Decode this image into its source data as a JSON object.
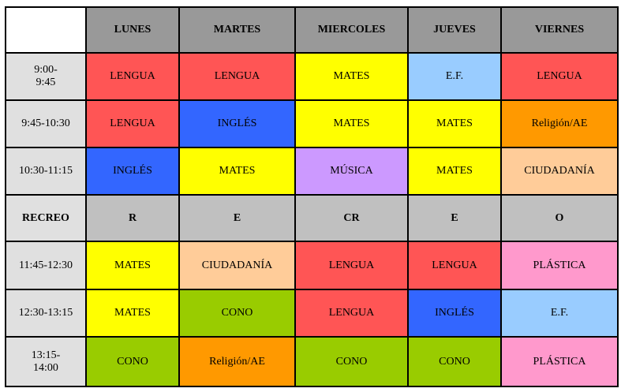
{
  "table": {
    "header": [
      "",
      "LUNES",
      "MARTES",
      "MIERCOLES",
      "JUEVES",
      "VIERNES"
    ],
    "header_color": "#999999",
    "rows": [
      {
        "time": "9:00-\n9:45",
        "bold": false,
        "cells": [
          {
            "text": "LENGUA",
            "color": "#ff5555"
          },
          {
            "text": "LENGUA",
            "color": "#ff5555"
          },
          {
            "text": "MATES",
            "color": "#ffff00"
          },
          {
            "text": "E.F.",
            "color": "#99ccff"
          },
          {
            "text": "LENGUA",
            "color": "#ff5555"
          }
        ]
      },
      {
        "time": "9:45-10:30",
        "bold": false,
        "cells": [
          {
            "text": "LENGUA",
            "color": "#ff5555"
          },
          {
            "text": "INGLÉS",
            "color": "#3366ff"
          },
          {
            "text": "MATES",
            "color": "#ffff00"
          },
          {
            "text": "MATES",
            "color": "#ffff00"
          },
          {
            "text": "Religión/AE",
            "color": "#ff9900"
          }
        ]
      },
      {
        "time": "10:30-11:15",
        "bold": false,
        "cells": [
          {
            "text": "INGLÉS",
            "color": "#3366ff"
          },
          {
            "text": "MATES",
            "color": "#ffff00"
          },
          {
            "text": "MÚSICA",
            "color": "#cc99ff"
          },
          {
            "text": "MATES",
            "color": "#ffff00"
          },
          {
            "text": "CIUDADANÍA",
            "color": "#ffcc99"
          }
        ]
      },
      {
        "time": "RECREO",
        "bold": true,
        "cells": [
          {
            "text": "R",
            "color": "#c0c0c0"
          },
          {
            "text": "E",
            "color": "#c0c0c0"
          },
          {
            "text": "CR",
            "color": "#c0c0c0"
          },
          {
            "text": "E",
            "color": "#c0c0c0"
          },
          {
            "text": "O",
            "color": "#c0c0c0"
          }
        ]
      },
      {
        "time": "11:45-12:30",
        "bold": false,
        "cells": [
          {
            "text": "MATES",
            "color": "#ffff00"
          },
          {
            "text": "CIUDADANÍA",
            "color": "#ffcc99"
          },
          {
            "text": "LENGUA",
            "color": "#ff5555"
          },
          {
            "text": "LENGUA",
            "color": "#ff5555"
          },
          {
            "text": "PLÁSTICA",
            "color": "#ff99cc"
          }
        ]
      },
      {
        "time": "12:30-13:15",
        "bold": false,
        "cells": [
          {
            "text": "MATES",
            "color": "#ffff00"
          },
          {
            "text": "CONO",
            "color": "#99cc00"
          },
          {
            "text": "LENGUA",
            "color": "#ff5555"
          },
          {
            "text": "INGLÉS",
            "color": "#3366ff"
          },
          {
            "text": "E.F.",
            "color": "#99ccff"
          }
        ]
      },
      {
        "time": "13:15-\n14:00",
        "bold": false,
        "cells": [
          {
            "text": "CONO",
            "color": "#99cc00"
          },
          {
            "text": "Religión/AE",
            "color": "#ff9900"
          },
          {
            "text": "CONO",
            "color": "#99cc00"
          },
          {
            "text": "CONO",
            "color": "#99cc00"
          },
          {
            "text": "PLÁSTICA",
            "color": "#ff99cc"
          }
        ]
      }
    ]
  }
}
